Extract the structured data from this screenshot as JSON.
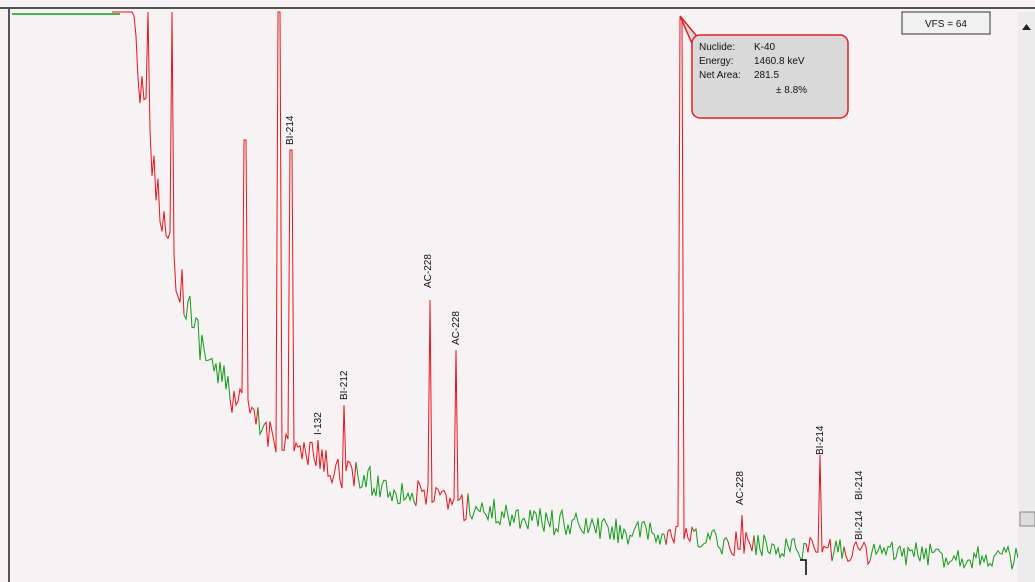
{
  "vfs_label": "VFS = 64",
  "tooltip": {
    "rows": [
      [
        "Nuclide:",
        "K-40"
      ],
      [
        "Energy:",
        "1460.8 keV"
      ],
      [
        "Net Area:",
        "281.5"
      ]
    ],
    "uncertainty": "± 8.8%"
  },
  "peak_labels": [
    "BI-214",
    "I-132",
    "BI-212",
    "AC-228",
    "AC-228",
    "AC-228",
    "BI-214",
    "BI-214",
    "BI-214"
  ]
}
